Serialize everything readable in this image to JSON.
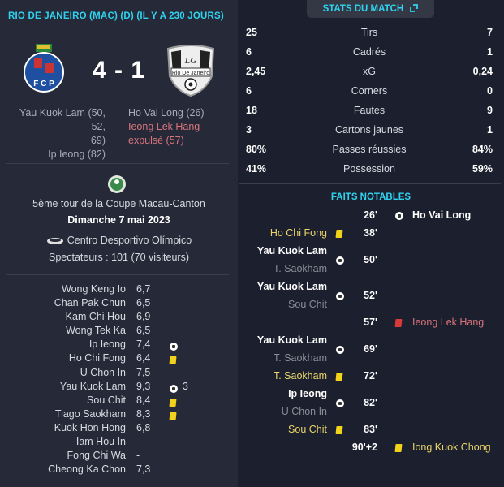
{
  "header": {
    "title": "RIO DE JANEIRO (MAC) (D) (IL Y A 230 JOURS)"
  },
  "match": {
    "home_score": "4",
    "sep": "-",
    "away_score": "1",
    "home_crest": "FCP",
    "away_crest": "Rio De Janeiro",
    "home_scorers": [
      "Yau Kuok Lam (50, 52,",
      "69)",
      "Ip Ieong (82)"
    ],
    "away_scorers": [
      "Ho Vai Long (26)",
      "Ieong Lek Hang",
      "expulsé (57)"
    ]
  },
  "info": {
    "competition": "5ème tour de la Coupe Macau-Canton",
    "date": "Dimanche 7 mai 2023",
    "stadium": "Centro Desportivo Olímpico",
    "attendance": "Spectateurs : 101 (70 visiteurs)"
  },
  "players": [
    {
      "name": "Wong Keng Io",
      "rating": "6,7"
    },
    {
      "name": "Chan Pak Chun",
      "rating": "6,5"
    },
    {
      "name": "Kam Chi Hou",
      "rating": "6,9"
    },
    {
      "name": "Wong Tek Ka",
      "rating": "6,5"
    },
    {
      "name": "Ip Ieong",
      "rating": "7,4",
      "icon": "ball"
    },
    {
      "name": "Ho Chi Fong",
      "rating": "6,4",
      "icon": "yellow"
    },
    {
      "name": "U Chon In",
      "rating": "7,5"
    },
    {
      "name": "Yau Kuok Lam",
      "rating": "9,3",
      "icon": "ball",
      "count": "3"
    },
    {
      "name": "Sou Chit",
      "rating": "8,4",
      "icon": "yellow"
    },
    {
      "name": "Tiago Saokham",
      "rating": "8,3",
      "icon": "yellow"
    },
    {
      "name": "Kuok Hon Hong",
      "rating": "6,8"
    },
    {
      "name": "Iam Hou In",
      "rating": "-"
    },
    {
      "name": "Fong Chi Wa",
      "rating": "-"
    },
    {
      "name": "Cheong Ka Chon",
      "rating": "7,3"
    }
  ],
  "stats_tab": {
    "label": "STATS DU MATCH",
    "icon": "expand-icon"
  },
  "stats": [
    {
      "label": "Tirs",
      "home": "25",
      "away": "7"
    },
    {
      "label": "Cadrés",
      "home": "6",
      "away": "1"
    },
    {
      "label": "xG",
      "home": "2,45",
      "away": "0,24"
    },
    {
      "label": "Corners",
      "home": "6",
      "away": "0"
    },
    {
      "label": "Fautes",
      "home": "18",
      "away": "9"
    },
    {
      "label": "Cartons jaunes",
      "home": "3",
      "away": "1"
    },
    {
      "label": "Passes réussies",
      "home": "80%",
      "away": "84%"
    },
    {
      "label": "Possession",
      "home": "41%",
      "away": "59%"
    }
  ],
  "facts": {
    "title": "FAITS NOTABLES",
    "events": [
      {
        "minute": "26'",
        "side": "away",
        "type": "goal",
        "player": "Ho Vai Long"
      },
      {
        "minute": "38'",
        "side": "home",
        "type": "yellow",
        "player": "Ho Chi Fong"
      },
      {
        "minute": "50'",
        "side": "home",
        "type": "goal",
        "player": "Yau Kuok Lam",
        "assist": "T. Saokham"
      },
      {
        "minute": "52'",
        "side": "home",
        "type": "goal",
        "player": "Yau Kuok Lam",
        "assist": "Sou Chit"
      },
      {
        "minute": "57'",
        "side": "away",
        "type": "red",
        "player": "Ieong Lek Hang"
      },
      {
        "minute": "69'",
        "side": "home",
        "type": "goal",
        "player": "Yau Kuok Lam",
        "assist": "T. Saokham"
      },
      {
        "minute": "72'",
        "side": "home",
        "type": "yellow",
        "player": "T. Saokham"
      },
      {
        "minute": "82'",
        "side": "home",
        "type": "goal",
        "player": "Ip Ieong",
        "assist": "U Chon In"
      },
      {
        "minute": "83'",
        "side": "home",
        "type": "yellow",
        "player": "Sou Chit"
      },
      {
        "minute": "90'+2",
        "side": "away",
        "type": "yellow",
        "player": "Iong Kuok Chong"
      }
    ]
  },
  "colors": {
    "accent": "#2fd3f0",
    "yellow_card": "#f2d31b",
    "red_card": "#d83a3a",
    "left_panel": "#262a38",
    "right_panel": "#1c1f2e"
  }
}
